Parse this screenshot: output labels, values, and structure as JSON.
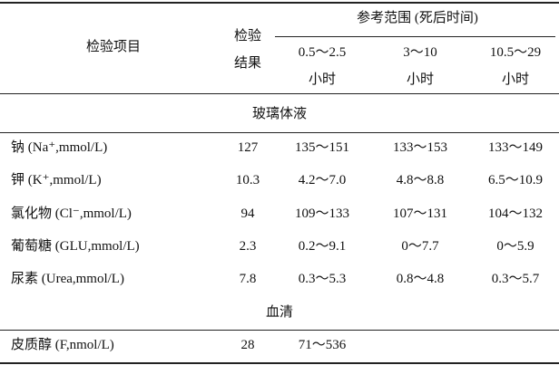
{
  "header": {
    "item": "检验项目",
    "result": "检验结果",
    "reference": "参考范围 (死后时间)",
    "sub_headers": [
      {
        "range": "0.5～2.5",
        "unit": "小时"
      },
      {
        "range": "3～10",
        "unit": "小时"
      },
      {
        "range": "10.5～29",
        "unit": "小时"
      }
    ]
  },
  "sections": [
    {
      "title": "玻璃体液",
      "rows": [
        [
          "钠 (Na⁺,mmol/L)",
          "127",
          "135～151",
          "133～153",
          "133～149"
        ],
        [
          "钾 (K⁺,mmol/L)",
          "10.3",
          "4.2～7.0",
          "4.8～8.8",
          "6.5～10.9"
        ],
        [
          "氯化物 (Cl⁻,mmol/L)",
          "94",
          "109～133",
          "107～131",
          "104～132"
        ],
        [
          "葡萄糖 (GLU,mmol/L)",
          "2.3",
          "0.2～9.1",
          "0～7.7",
          "0～5.9"
        ],
        [
          "尿素 (Urea,mmol/L)",
          "7.8",
          "0.3～5.3",
          "0.8～4.8",
          "0.3～5.7"
        ]
      ]
    },
    {
      "title": "血清",
      "rows": [
        [
          "皮质醇 (F,nmol/L)",
          "28",
          "71～536"
        ]
      ]
    }
  ]
}
